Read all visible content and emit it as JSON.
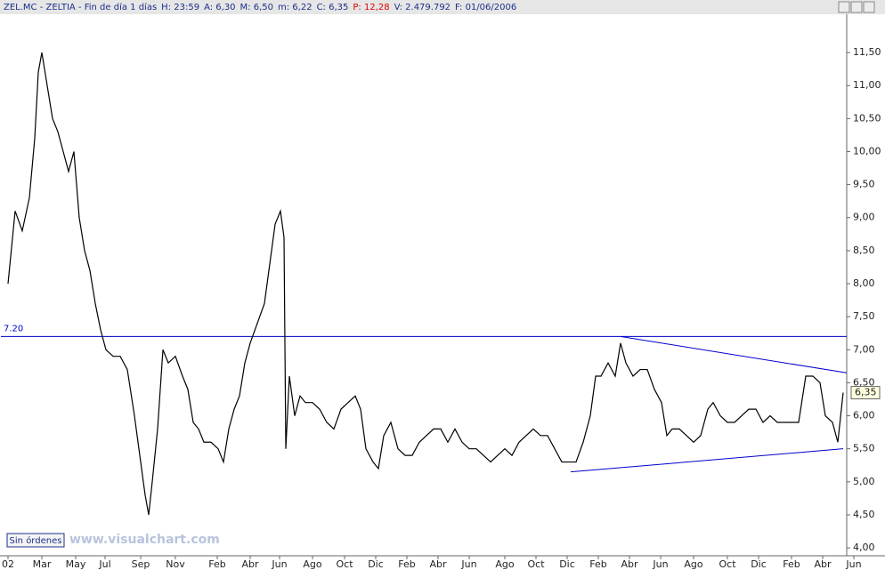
{
  "header": [
    "ZEL.MC - ZELTIA - Fin de día 1 días",
    "H: 23:59",
    "A: 6,30",
    "M: 6,50",
    "m: 6,22",
    "C: 6,35",
    "P: 12,28",
    "V: 2.479.792",
    "F: 01/06/2006"
  ],
  "button": "Sin órdenes",
  "watermark": "www.visualchart.com",
  "chart_data": {
    "type": "line",
    "color": "#000000",
    "line_color": "#0000cc",
    "x": [
      8,
      16,
      24,
      32,
      38,
      42,
      46,
      52,
      58,
      64,
      70,
      76,
      82,
      88,
      94,
      100,
      106,
      112,
      118,
      126,
      134,
      142,
      150,
      156,
      162,
      166,
      170,
      176,
      182,
      188,
      196,
      204,
      210,
      216,
      222,
      228,
      236,
      244,
      250,
      256,
      262,
      268,
      274,
      280,
      288,
      296,
      302,
      308,
      314,
      318,
      320,
      324,
      330,
      336,
      342,
      350,
      358,
      366,
      374,
      382,
      390,
      398,
      404,
      410,
      418,
      424,
      430,
      438,
      446,
      454,
      462,
      470,
      478,
      486,
      494,
      502,
      510,
      518,
      526,
      534,
      542,
      550,
      558,
      566,
      574,
      582,
      590,
      598,
      606,
      614,
      622,
      630,
      638,
      646,
      654,
      662,
      668,
      674,
      682,
      690,
      696,
      702,
      710,
      718,
      726,
      734,
      742,
      748,
      754,
      762,
      770,
      778,
      786,
      794,
      800,
      808,
      816,
      824,
      832,
      840,
      848,
      856,
      864,
      872,
      880,
      888,
      896,
      904,
      912,
      920,
      926,
      934,
      940,
      946
    ],
    "values": [
      8.0,
      9.1,
      8.8,
      9.3,
      10.2,
      11.2,
      11.5,
      11.0,
      10.5,
      10.3,
      10.0,
      9.7,
      10.0,
      9.0,
      8.5,
      8.2,
      7.7,
      7.3,
      7.0,
      6.9,
      6.9,
      6.7,
      6.0,
      5.4,
      4.8,
      4.5,
      5.0,
      5.8,
      7.0,
      6.8,
      6.9,
      6.6,
      6.4,
      5.9,
      5.8,
      5.6,
      5.6,
      5.5,
      5.3,
      5.8,
      6.1,
      6.3,
      6.8,
      7.1,
      7.4,
      7.7,
      8.3,
      8.9,
      9.1,
      8.7,
      5.5,
      6.6,
      6.0,
      6.3,
      6.2,
      6.2,
      6.1,
      5.9,
      5.8,
      6.1,
      6.2,
      6.3,
      6.1,
      5.5,
      5.3,
      5.2,
      5.7,
      5.9,
      5.5,
      5.4,
      5.4,
      5.6,
      5.7,
      5.8,
      5.8,
      5.6,
      5.8,
      5.6,
      5.5,
      5.5,
      5.4,
      5.3,
      5.4,
      5.5,
      5.4,
      5.6,
      5.7,
      5.8,
      5.7,
      5.7,
      5.5,
      5.3,
      5.3,
      5.3,
      5.6,
      6.0,
      6.6,
      6.6,
      6.8,
      6.6,
      7.1,
      6.8,
      6.6,
      6.7,
      6.7,
      6.4,
      6.2,
      5.7,
      5.8,
      5.8,
      5.7,
      5.6,
      5.7,
      6.1,
      6.2,
      6.0,
      5.9,
      5.9,
      6.0,
      6.1,
      6.1,
      5.9,
      6.0,
      5.9,
      5.9,
      5.9,
      5.9,
      6.6,
      6.6,
      6.5,
      6.0,
      5.9,
      5.6,
      6.35
    ],
    "xlim": [
      0,
      950
    ],
    "xticks": [
      {
        "value": 8,
        "label": "02"
      },
      {
        "value": 46,
        "label": "Mar"
      },
      {
        "value": 84,
        "label": "May"
      },
      {
        "value": 117,
        "label": "Jul"
      },
      {
        "value": 157,
        "label": "Sep"
      },
      {
        "value": 196,
        "label": "Nov"
      },
      {
        "value": 243,
        "label": "Feb"
      },
      {
        "value": 280,
        "label": "Abr"
      },
      {
        "value": 313,
        "label": "Jun"
      },
      {
        "value": 350,
        "label": "Ago"
      },
      {
        "value": 386,
        "label": "Oct"
      },
      {
        "value": 421,
        "label": "Dic"
      },
      {
        "value": 456,
        "label": "Feb"
      },
      {
        "value": 491,
        "label": "Abr"
      },
      {
        "value": 526,
        "label": "Jun"
      },
      {
        "value": 566,
        "label": "Ago"
      },
      {
        "value": 601,
        "label": "Oct"
      },
      {
        "value": 636,
        "label": "Dic"
      },
      {
        "value": 671,
        "label": "Feb"
      },
      {
        "value": 706,
        "label": "Abr"
      },
      {
        "value": 741,
        "label": "Jun"
      },
      {
        "value": 778,
        "label": "Ago"
      },
      {
        "value": 816,
        "label": "Oct"
      },
      {
        "value": 851,
        "label": "Dic"
      },
      {
        "value": 888,
        "label": "Feb"
      },
      {
        "value": 923,
        "label": "Abr"
      },
      {
        "value": 958,
        "label": "Jun"
      }
    ],
    "ylim": [
      3.88,
      12.08
    ],
    "yticks": [
      {
        "value": 4,
        "label": "4,00"
      },
      {
        "value": 4.5,
        "label": "4,50"
      },
      {
        "value": 5,
        "label": "5,00"
      },
      {
        "value": 5.5,
        "label": "5,50"
      },
      {
        "value": 6,
        "label": "6,00"
      },
      {
        "value": 6.5,
        "label": "6,50"
      },
      {
        "value": 7,
        "label": "7,00"
      },
      {
        "value": 7.5,
        "label": "7,50"
      },
      {
        "value": 8,
        "label": "8,00"
      },
      {
        "value": 8.5,
        "label": "8,50"
      },
      {
        "value": 9,
        "label": "9,00"
      },
      {
        "value": 9.5,
        "label": "9,50"
      },
      {
        "value": 10,
        "label": "10,00"
      },
      {
        "value": 10.5,
        "label": "10,50"
      },
      {
        "value": 11,
        "label": "11,00"
      },
      {
        "value": 11.5,
        "label": "11,50"
      }
    ],
    "hline": {
      "value": 7.2,
      "label": "7.20"
    },
    "trendlines": [
      {
        "x": [
          696,
          950
        ],
        "y": [
          7.2,
          6.65
        ]
      },
      {
        "x": [
          640,
          946
        ],
        "y": [
          5.15,
          5.5
        ]
      }
    ],
    "last_price": {
      "value": 6.35,
      "label": "6,35"
    }
  }
}
